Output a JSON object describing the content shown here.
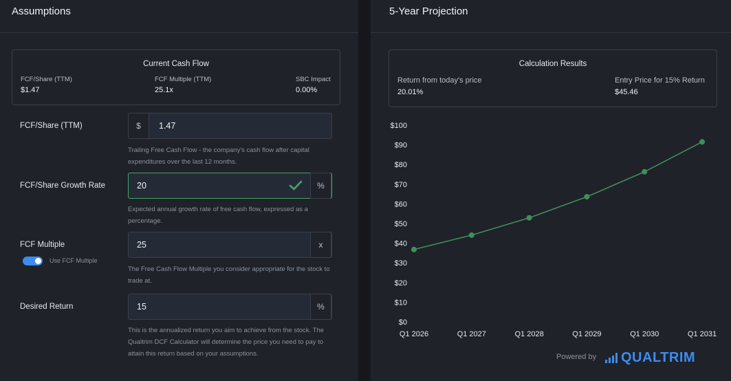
{
  "left_panel": {
    "title": "Assumptions",
    "current_cash_flow": {
      "title": "Current Cash Flow",
      "metrics": [
        {
          "label": "FCF/Share (TTM)",
          "value": "$1.47"
        },
        {
          "label": "FCF Multiple (TTM)",
          "value": "25.1x"
        },
        {
          "label": "SBC Impact",
          "value": "0.00%"
        }
      ]
    },
    "fields": {
      "fcf_share": {
        "label": "FCF/Share (TTM)",
        "prefix": "$",
        "value": "1.47",
        "help": "Trailing Free Cash Flow - the company's cash flow after capital expenditures over the last 12 months."
      },
      "growth_rate": {
        "label": "FCF/Share Growth Rate",
        "value": "20",
        "suffix": "%",
        "help": "Expected annual growth rate of free cash flow, expressed as a percentage."
      },
      "fcf_multiple": {
        "label": "FCF Multiple",
        "value": "25",
        "suffix": "x",
        "toggle_label": "Use FCF Multiple",
        "help": "The Free Cash Flow Multiple you consider appropriate for the stock to trade at."
      },
      "desired_return": {
        "label": "Desired Return",
        "value": "15",
        "suffix": "%",
        "help": "This is the annualized return you aim to achieve from the stock. The Qualtrim DCF Calculator will determine the price you need to pay to attain this return based on your assumptions."
      }
    }
  },
  "right_panel": {
    "title": "5-Year Projection",
    "results": {
      "title": "Calculation Results",
      "return_label": "Return from today's price",
      "return_value": "20.01%",
      "entry_label": "Entry Price for 15% Return",
      "entry_value": "$45.46"
    }
  },
  "footer": {
    "powered_by": "Powered by",
    "brand": "QUALTRIM"
  },
  "colors": {
    "accent": "#3d8cf0",
    "line": "#3f8f5e",
    "valid": "#45a566"
  },
  "chart_data": {
    "type": "line",
    "x": [
      "Q1 2026",
      "Q1 2027",
      "Q1 2028",
      "Q1 2029",
      "Q1 2030",
      "Q1 2031"
    ],
    "series": [
      {
        "values": [
          36.8,
          44.1,
          52.9,
          63.6,
          76.3,
          91.5
        ]
      }
    ],
    "y_ticks": [
      "$0",
      "$10",
      "$20",
      "$30",
      "$40",
      "$50",
      "$60",
      "$70",
      "$80",
      "$90",
      "$100"
    ],
    "ylim": [
      0,
      100
    ],
    "grid": false,
    "legend": "none"
  }
}
